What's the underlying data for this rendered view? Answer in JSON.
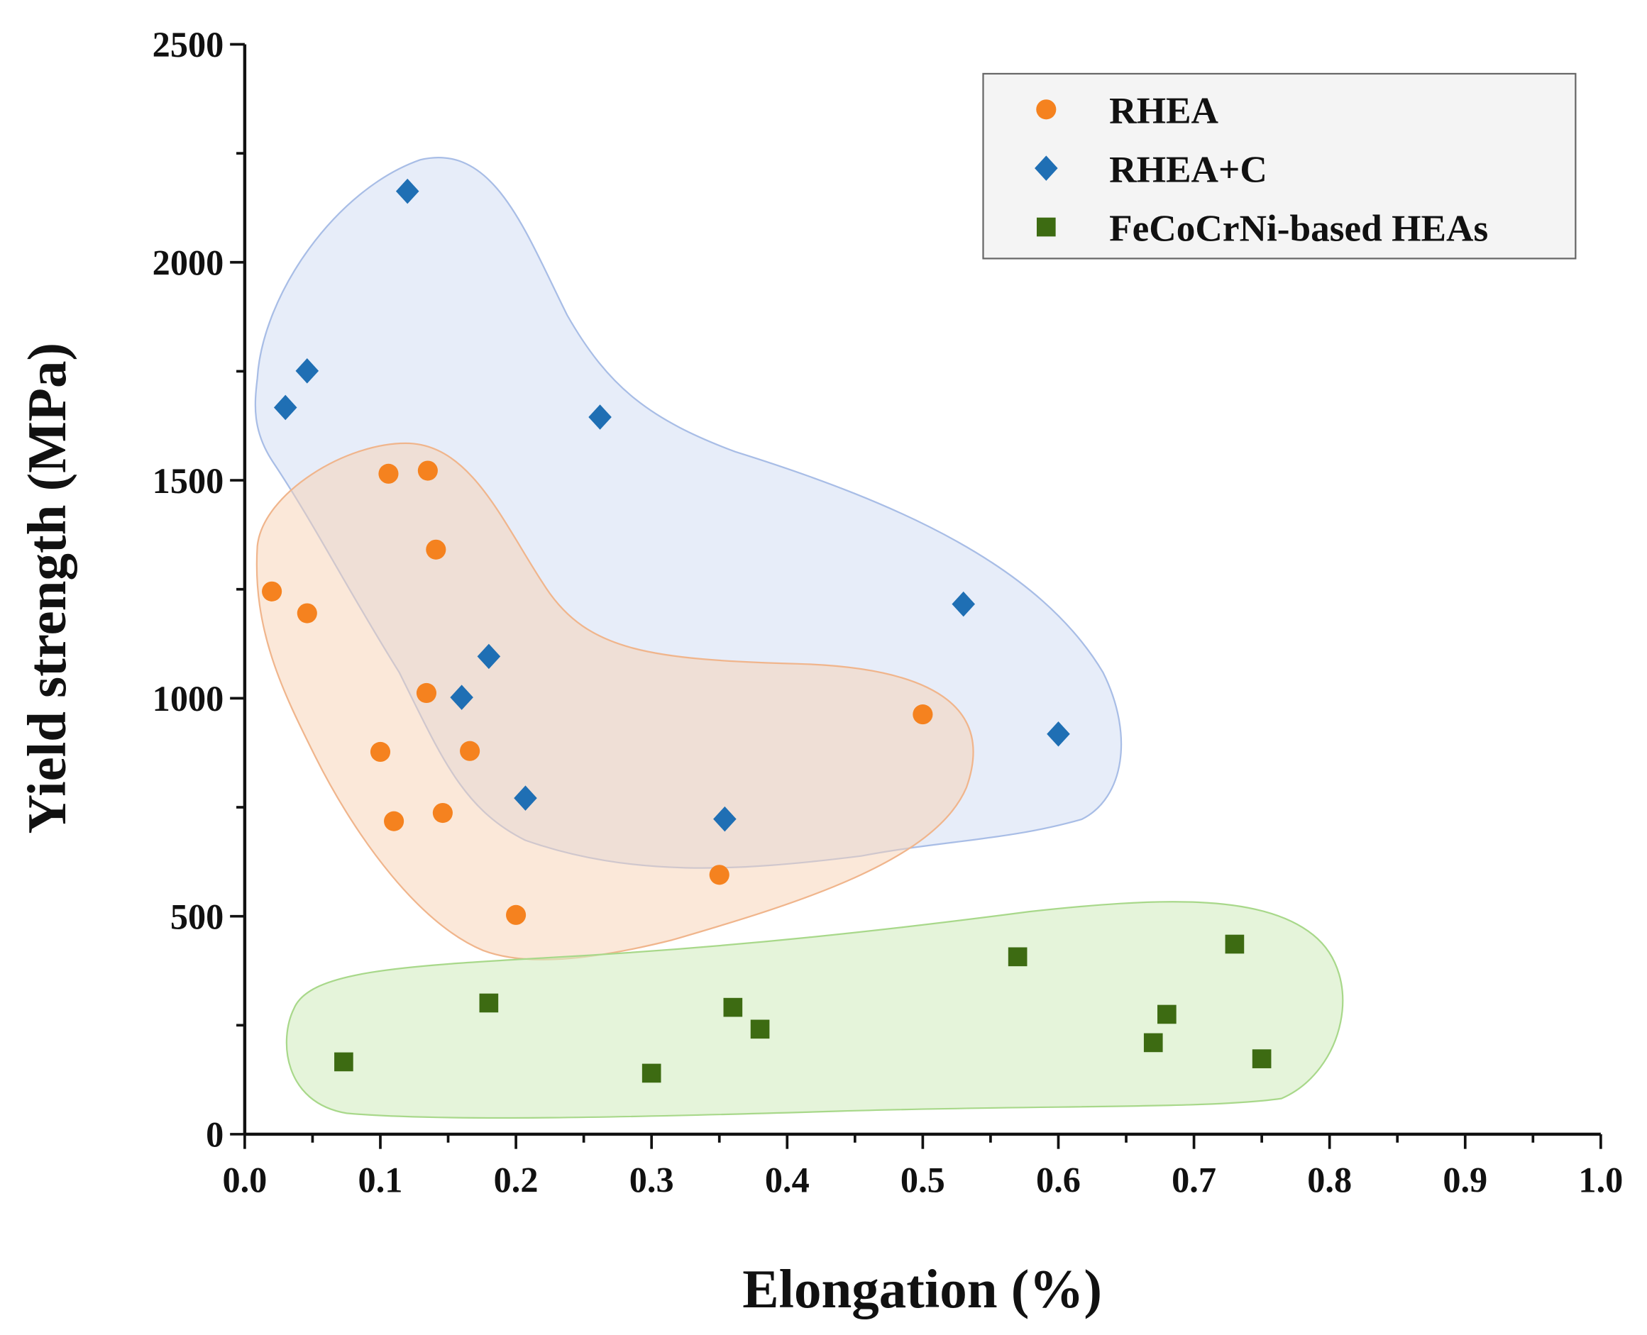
{
  "chart_data": {
    "type": "scatter",
    "title": "",
    "xlabel": "Elongation (%)",
    "ylabel": "Yield strength (MPa)",
    "xlim": [
      0,
      1.0
    ],
    "ylim": [
      0,
      2500
    ],
    "xticks": [
      "0.0",
      "0.1",
      "0.2",
      "0.3",
      "0.4",
      "0.5",
      "0.6",
      "0.7",
      "0.8",
      "0.9",
      "1.0"
    ],
    "yticks": [
      "0",
      "500",
      "1000",
      "1500",
      "2000",
      "2500"
    ],
    "legend_position": "top-right",
    "series": [
      {
        "name": "RHEA",
        "marker": "circle",
        "color": "#f5821f",
        "points": [
          [
            0.02,
            1245
          ],
          [
            0.046,
            1195
          ],
          [
            0.106,
            1515
          ],
          [
            0.135,
            1522
          ],
          [
            0.141,
            1341
          ],
          [
            0.134,
            1012
          ],
          [
            0.1,
            877
          ],
          [
            0.166,
            879
          ],
          [
            0.11,
            718
          ],
          [
            0.146,
            737
          ],
          [
            0.2,
            503
          ],
          [
            0.35,
            595
          ],
          [
            0.5,
            963
          ]
        ]
      },
      {
        "name": "RHEA+C",
        "marker": "diamond",
        "color": "#1f6fb4",
        "points": [
          [
            0.12,
            2163
          ],
          [
            0.03,
            1667
          ],
          [
            0.046,
            1751
          ],
          [
            0.262,
            1645
          ],
          [
            0.18,
            1096
          ],
          [
            0.16,
            1002
          ],
          [
            0.207,
            771
          ],
          [
            0.354,
            723
          ],
          [
            0.53,
            1216
          ],
          [
            0.6,
            918
          ]
        ]
      },
      {
        "name": "FeCoCrNi-based HEAs",
        "marker": "square",
        "color": "#3d6b12",
        "points": [
          [
            0.073,
            166
          ],
          [
            0.18,
            301
          ],
          [
            0.3,
            140
          ],
          [
            0.36,
            291
          ],
          [
            0.38,
            241
          ],
          [
            0.57,
            407
          ],
          [
            0.67,
            210
          ],
          [
            0.68,
            275
          ],
          [
            0.73,
            436
          ],
          [
            0.75,
            173
          ]
        ]
      }
    ]
  }
}
